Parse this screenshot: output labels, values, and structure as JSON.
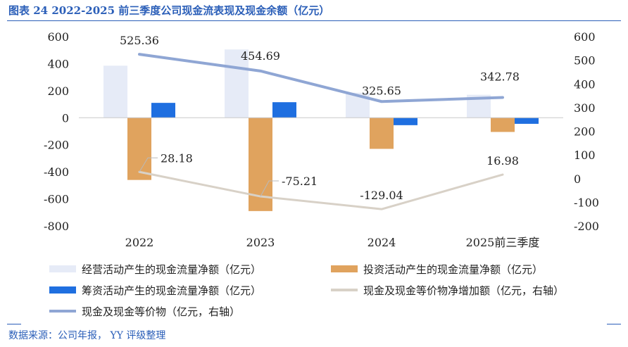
{
  "title": "图表 24 2022-2025 前三季度公司现金流表现及现金余额（亿元）",
  "source": "数据来源：公司年报， YY 评级整理",
  "colors": {
    "operating": "#e6ebf7",
    "investing": "#e0a35e",
    "financing": "#1f6fe0",
    "net_change": "#d8d1c7",
    "cash_balance": "#8fa6d4",
    "accent": "#2a5eb8"
  },
  "chart_data": {
    "type": "bar",
    "categories": [
      "2022",
      "2023",
      "2024",
      "2025前三季度"
    ],
    "series": [
      {
        "name": "经营活动产生的现金流量净额（亿元）",
        "kind": "bar",
        "axis": "left",
        "values": [
          385,
          505,
          185,
          170
        ]
      },
      {
        "name": "投资活动产生的现金流量净额（亿元）",
        "kind": "bar",
        "axis": "left",
        "values": [
          -460,
          -690,
          -230,
          -105
        ]
      },
      {
        "name": "筹资活动产生的现金流量净额（亿元）",
        "kind": "bar",
        "axis": "left",
        "values": [
          110,
          115,
          -55,
          -45
        ]
      },
      {
        "name": "现金及现金等价物净增加额（亿元，右轴）",
        "kind": "line",
        "axis": "right",
        "values": [
          28.18,
          -75.21,
          -129.04,
          16.98
        ]
      },
      {
        "name": "现金及现金等价物（亿元，右轴）",
        "kind": "line",
        "axis": "right",
        "values": [
          525.36,
          454.69,
          325.65,
          342.78
        ]
      }
    ],
    "line_labels": {
      "net_change": [
        "28.18",
        "-75.21",
        "-129.04",
        "16.98"
      ],
      "cash_balance": [
        "525.36",
        "454.69",
        "325.65",
        "342.78"
      ]
    },
    "y_left": {
      "min": -800,
      "max": 600,
      "ticks": [
        "600",
        "400",
        "200",
        "0",
        "-200",
        "-400",
        "-600",
        "-800"
      ]
    },
    "y_right": {
      "min": -200,
      "max": 600,
      "ticks": [
        "600",
        "500",
        "400",
        "300",
        "200",
        "100",
        "0",
        "-100",
        "-200"
      ]
    },
    "legend_position": "bottom",
    "grid": false
  }
}
